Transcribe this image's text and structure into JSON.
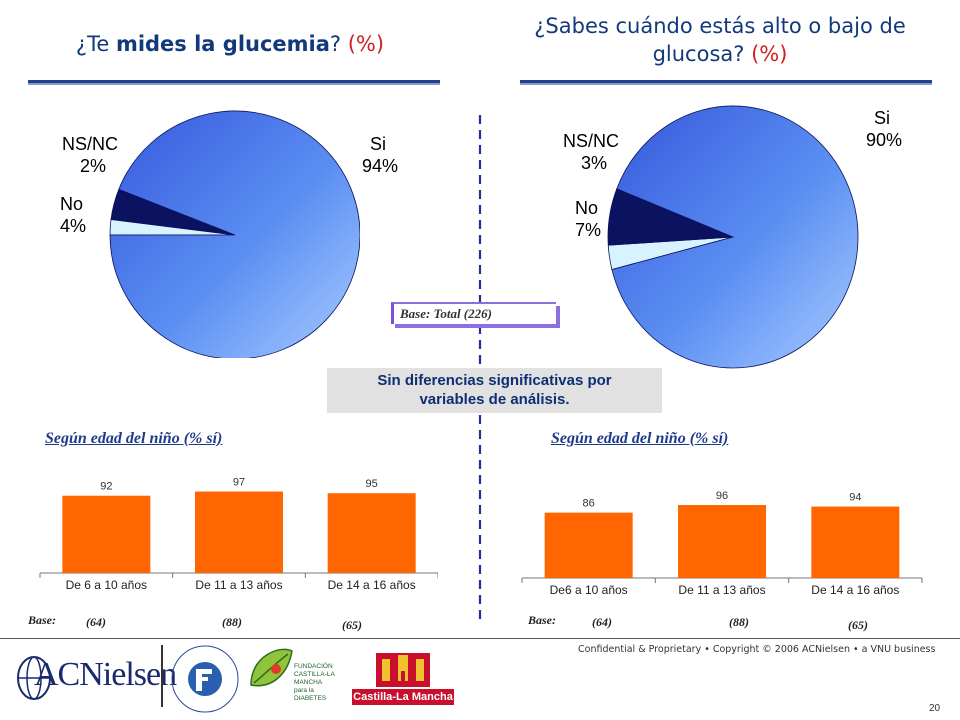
{
  "titles": {
    "left_prefix": "¿Te ",
    "left_bold": "mides la glucemia",
    "left_suffix": "? ",
    "left_pct": "(%)",
    "right_line1": "¿Sabes cuándo estás alto o bajo de",
    "right_line2": "glucosa? ",
    "right_pct": "(%)"
  },
  "base_total": "Base: Total (226)",
  "note": {
    "line1": "Sin diferencias significativas por",
    "line2": "variables de análisis."
  },
  "sections": {
    "left": "Según edad del niño (% sí)",
    "right": "Según edad del niño (% sí)"
  },
  "chart_data": [
    {
      "type": "pie",
      "slices": [
        {
          "label": "Si",
          "value": 94,
          "display": "94%",
          "color": "#4d7fe8"
        },
        {
          "label": "NS/NC",
          "value": 2,
          "display": "2%",
          "color": "#d9f2ff"
        },
        {
          "label": "No",
          "value": 4,
          "display": "4%",
          "color": "#0b1360"
        }
      ]
    },
    {
      "type": "pie",
      "slices": [
        {
          "label": "Si",
          "value": 90,
          "display": "90%",
          "color": "#4d7fe8"
        },
        {
          "label": "NS/NC",
          "value": 3,
          "display": "3%",
          "color": "#d9f2ff"
        },
        {
          "label": "No",
          "value": 7,
          "display": "7%",
          "color": "#0b1360"
        }
      ]
    },
    {
      "type": "bar",
      "categories": [
        "De 6 a 10 años",
        "De 11 a 13 años",
        "De 14 a 16 años"
      ],
      "values": [
        92,
        97,
        95
      ],
      "bases": [
        "(64)",
        "(88)",
        "(65)"
      ],
      "base_label": "Base:",
      "ylim": [
        0,
        100
      ],
      "color": "#ff6600"
    },
    {
      "type": "bar",
      "categories": [
        "De6 a 10 años",
        "De 11 a 13 años",
        "De 14 a 16 años"
      ],
      "values": [
        86,
        96,
        94
      ],
      "bases": [
        "(64)",
        "(88)",
        "(65)"
      ],
      "base_label": "Base:",
      "ylim": [
        0,
        100
      ],
      "color": "#ff6600"
    }
  ],
  "footer": {
    "confidential": "Confidential & Proprietary • Copyright © 2006 ACNielsen • a VNU business",
    "page": "20",
    "logo_acn": "ACNielsen",
    "logo_fundacion": "FUNDACION PARA LA DIABETES",
    "logo_fcm_line1": "FUNDACIÓN",
    "logo_fcm_line2": "CASTILLA-LA MANCHA",
    "logo_fcm_line3": "para la DIABETES",
    "logo_clm": "Castilla-La Mancha"
  }
}
